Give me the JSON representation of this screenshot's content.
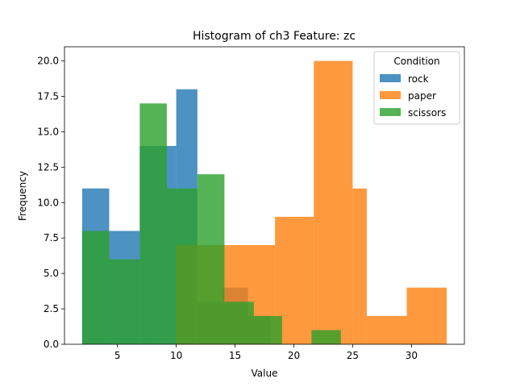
{
  "chart_data": {
    "type": "histogram",
    "title": "Histogram of ch3 Feature: zc",
    "xlabel": "Value",
    "ylabel": "Frequency",
    "xlim": [
      0.5,
      34.5
    ],
    "ylim": [
      0,
      21
    ],
    "xticks": [
      5,
      10,
      15,
      20,
      25,
      30
    ],
    "yticks": [
      0.0,
      2.5,
      5.0,
      7.5,
      10.0,
      12.5,
      15.0,
      17.5,
      20.0
    ],
    "legend": {
      "title": "Condition",
      "placement": "top-right"
    },
    "series": [
      {
        "name": "rock",
        "color": "#1f77b4",
        "bins": [
          {
            "x0": 2.0,
            "x1": 4.3,
            "count": 11
          },
          {
            "x0": 4.3,
            "x1": 6.9,
            "count": 8
          },
          {
            "x0": 6.9,
            "x1": 8.0,
            "count": 14
          },
          {
            "x0": 8.0,
            "x1": 10.0,
            "count": 14
          },
          {
            "x0": 10.0,
            "x1": 11.8,
            "count": 18
          },
          {
            "x0": 11.8,
            "x1": 13.9,
            "count": 3
          },
          {
            "x0": 13.9,
            "x1": 16.1,
            "count": 4
          },
          {
            "x0": 16.1,
            "x1": 18.0,
            "count": 2
          }
        ]
      },
      {
        "name": "paper",
        "color": "#ff7f0e",
        "bins": [
          {
            "x0": 10.0,
            "x1": 14.5,
            "count": 7
          },
          {
            "x0": 14.5,
            "x1": 18.4,
            "count": 7
          },
          {
            "x0": 18.4,
            "x1": 21.7,
            "count": 9
          },
          {
            "x0": 21.7,
            "x1": 25.0,
            "count": 20
          },
          {
            "x0": 25.0,
            "x1": 26.2,
            "count": 11
          },
          {
            "x0": 26.2,
            "x1": 29.6,
            "count": 2
          },
          {
            "x0": 29.6,
            "x1": 33.0,
            "count": 4
          }
        ]
      },
      {
        "name": "scissors",
        "color": "#2ca02c",
        "bins": [
          {
            "x0": 2.0,
            "x1": 4.3,
            "count": 8
          },
          {
            "x0": 4.3,
            "x1": 6.9,
            "count": 6
          },
          {
            "x0": 6.9,
            "x1": 9.2,
            "count": 17
          },
          {
            "x0": 9.2,
            "x1": 11.8,
            "count": 11
          },
          {
            "x0": 11.8,
            "x1": 14.1,
            "count": 12
          },
          {
            "x0": 14.1,
            "x1": 16.6,
            "count": 3
          },
          {
            "x0": 16.6,
            "x1": 19.0,
            "count": 2
          },
          {
            "x0": 19.0,
            "x1": 21.5,
            "count": 0
          },
          {
            "x0": 21.5,
            "x1": 24.0,
            "count": 1
          }
        ]
      }
    ]
  }
}
